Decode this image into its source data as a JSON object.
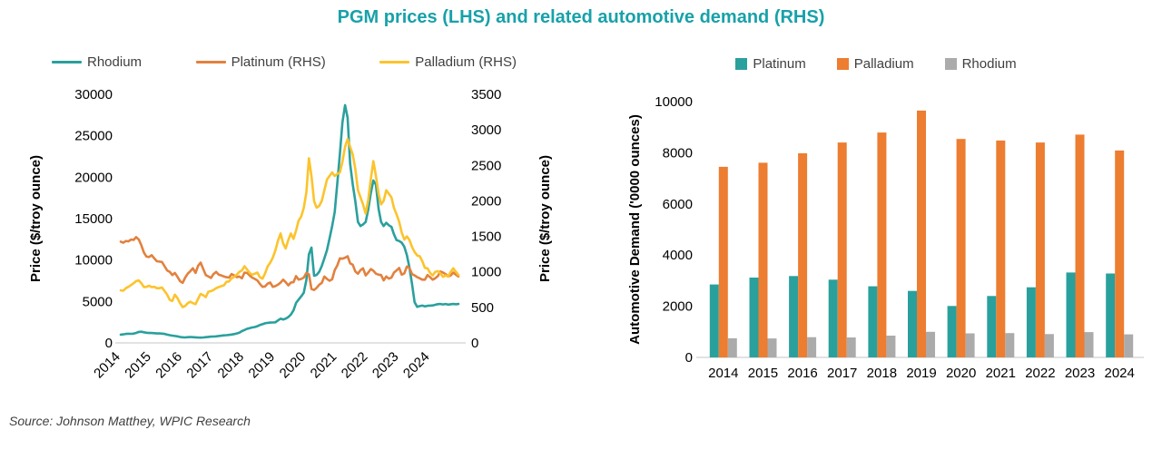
{
  "title": "PGM prices (LHS) and related automotive demand (RHS)",
  "source": "Source: Johnson Matthey, WPIC Research",
  "colors": {
    "title": "#18A1A9",
    "teal": "#2AA09D",
    "orange": "#ED7D31",
    "yellow": "#FCC32C",
    "gray": "#ABABAB",
    "axis_line": "#D9D9D9",
    "text": "#3F3F3F"
  },
  "chart_data": [
    {
      "type": "line",
      "title": "PGM prices (LHS)",
      "ylabel_left": "Price ($/troy ounce)",
      "ylabel_right": "Price ($/troy ounce)",
      "ylim_left": [
        0,
        30000
      ],
      "yticks_left": [
        0,
        5000,
        10000,
        15000,
        20000,
        25000,
        30000
      ],
      "ylim_right": [
        0,
        3500
      ],
      "yticks_right": [
        0,
        500,
        1000,
        1500,
        2000,
        2500,
        3000,
        3500
      ],
      "xticks": [
        "2014",
        "2015",
        "2016",
        "2017",
        "2018",
        "2019",
        "2020",
        "2021",
        "2022",
        "2023",
        "2024"
      ],
      "x_start_year": 2014,
      "points_per_year": 12,
      "grid": false,
      "legend_position": "top",
      "legend": [
        {
          "label": "Rhodium",
          "color": "#2AA09D"
        },
        {
          "label": "Platinum (RHS)",
          "color": "#E2813E"
        },
        {
          "label": "Palladium (RHS)",
          "color": "#FCC32C"
        }
      ],
      "series": [
        {
          "name": "Rhodium",
          "axis": "left",
          "color": "#2AA09D",
          "values": [
            1000,
            1030,
            1080,
            1110,
            1090,
            1120,
            1200,
            1330,
            1350,
            1280,
            1230,
            1190,
            1190,
            1170,
            1140,
            1150,
            1120,
            1080,
            1000,
            930,
            880,
            830,
            790,
            710,
            680,
            660,
            690,
            710,
            695,
            670,
            645,
            640,
            655,
            685,
            720,
            755,
            770,
            790,
            830,
            870,
            905,
            930,
            965,
            1005,
            1065,
            1135,
            1230,
            1420,
            1560,
            1700,
            1790,
            1860,
            1920,
            2020,
            2160,
            2260,
            2360,
            2420,
            2450,
            2460,
            2480,
            2720,
            2920,
            2830,
            2920,
            3120,
            3420,
            3920,
            4820,
            5220,
            5620,
            6050,
            7600,
            10700,
            11500,
            8100,
            8200,
            8600,
            9300,
            10200,
            11200,
            12600,
            14100,
            15800,
            19200,
            22800,
            26600,
            28700,
            27200,
            21600,
            19100,
            17100,
            14600,
            14100,
            14300,
            14600,
            16100,
            18100,
            19600,
            19100,
            16200,
            14600,
            14100,
            14500,
            14200,
            14000,
            13100,
            12400,
            12300,
            12100,
            11600,
            10600,
            9100,
            7100,
            4900,
            4350,
            4450,
            4500,
            4400,
            4480,
            4500,
            4520,
            4600,
            4680,
            4700,
            4640,
            4700,
            4620,
            4660,
            4700,
            4660,
            4700
          ]
        },
        {
          "name": "Platinum (RHS)",
          "axis": "right",
          "color": "#E2813E",
          "values": [
            1425,
            1410,
            1435,
            1430,
            1455,
            1450,
            1490,
            1455,
            1375,
            1270,
            1215,
            1210,
            1235,
            1190,
            1150,
            1145,
            1140,
            1080,
            1020,
            1000,
            955,
            985,
            930,
            870,
            845,
            920,
            975,
            1010,
            1050,
            985,
            1085,
            1130,
            1040,
            955,
            935,
            915,
            970,
            1000,
            960,
            950,
            935,
            925,
            920,
            970,
            950,
            925,
            935,
            910,
            990,
            985,
            950,
            920,
            900,
            880,
            830,
            790,
            795,
            835,
            850,
            790,
            800,
            820,
            850,
            890,
            855,
            810,
            850,
            855,
            940,
            890,
            900,
            920,
            985,
            965,
            760,
            745,
            775,
            820,
            845,
            935,
            900,
            875,
            895,
            1025,
            1090,
            1190,
            1185,
            1200,
            1220,
            1120,
            1100,
            1005,
            975,
            1025,
            1050,
            950,
            990,
            1040,
            1015,
            975,
            960,
            955,
            880,
            935,
            905,
            920,
            990,
            1020,
            1055,
            960,
            980,
            1075,
            1055,
            970,
            950,
            925,
            910,
            890,
            890,
            955,
            925,
            890,
            910,
            940,
            1005,
            990,
            970,
            935,
            950,
            990,
            960,
            935
          ]
        },
        {
          "name": "Palladium (RHS)",
          "axis": "right",
          "color": "#FCC32C",
          "values": [
            740,
            735,
            770,
            790,
            815,
            840,
            870,
            880,
            840,
            785,
            790,
            805,
            785,
            790,
            770,
            770,
            780,
            730,
            680,
            605,
            590,
            680,
            630,
            560,
            505,
            520,
            560,
            580,
            560,
            545,
            620,
            690,
            670,
            645,
            720,
            730,
            745,
            770,
            785,
            800,
            810,
            860,
            865,
            910,
            930,
            960,
            1000,
            1020,
            1080,
            1035,
            985,
            960,
            975,
            990,
            925,
            905,
            980,
            1080,
            1130,
            1200,
            1305,
            1440,
            1540,
            1400,
            1330,
            1450,
            1540,
            1465,
            1580,
            1720,
            1780,
            1900,
            2120,
            2600,
            2350,
            1995,
            1905,
            1930,
            2000,
            2150,
            2300,
            2350,
            2400,
            2350,
            2380,
            2400,
            2550,
            2760,
            2870,
            2760,
            2650,
            2450,
            2150,
            2050,
            1950,
            1820,
            2010,
            2310,
            2560,
            2350,
            2100,
            1950,
            2000,
            2150,
            2100,
            2050,
            1900,
            1810,
            1705,
            1555,
            1455,
            1500,
            1450,
            1350,
            1280,
            1230,
            1220,
            1150,
            1055,
            1050,
            985,
            950,
            1000,
            1010,
            980,
            930,
            950,
            935,
            1000,
            1050,
            1000,
            955
          ]
        }
      ]
    },
    {
      "type": "bar",
      "title": "related automotive demand (RHS)",
      "ylabel": "Automotive Demand ('0000 ounces)",
      "ylim": [
        0,
        10000
      ],
      "yticks": [
        0,
        2000,
        4000,
        6000,
        8000,
        10000
      ],
      "grid": false,
      "legend_position": "top",
      "categories": [
        "2014",
        "2015",
        "2016",
        "2017",
        "2018",
        "2019",
        "2020",
        "2021",
        "2022",
        "2023",
        "2024"
      ],
      "series": [
        {
          "name": "Platinum",
          "color": "#2AA09D",
          "values": [
            2850,
            3120,
            3180,
            3040,
            2780,
            2600,
            2010,
            2400,
            2740,
            3320,
            3280
          ]
        },
        {
          "name": "Palladium",
          "color": "#ED7D31",
          "values": [
            7450,
            7610,
            7980,
            8400,
            8790,
            9650,
            8540,
            8480,
            8400,
            8710,
            8090
          ]
        },
        {
          "name": "Rhodium",
          "color": "#ABABAB",
          "values": [
            750,
            740,
            790,
            780,
            850,
            1000,
            940,
            950,
            910,
            990,
            900
          ]
        }
      ]
    }
  ]
}
